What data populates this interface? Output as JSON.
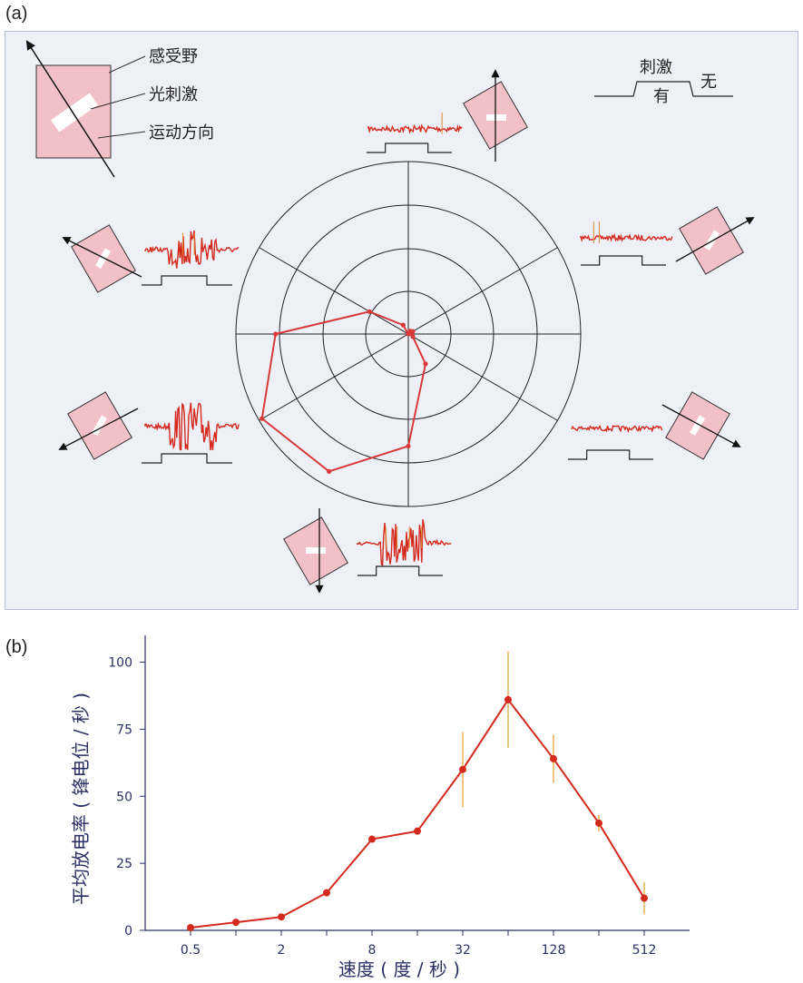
{
  "panel_a": {
    "label": "(a)",
    "legend": {
      "receptive_field": "感受野",
      "light_stimulus": "光刺激",
      "motion_direction": "运动方向"
    },
    "stimulus_key": {
      "title": "刺激",
      "on": "有",
      "off": "无"
    },
    "colors": {
      "trace": "#d42a1e",
      "field": "#f2c1c8",
      "polygon": "#d8393a"
    }
  },
  "chart_data": [
    {
      "type": "polar",
      "panel": "a",
      "title": "",
      "directions_deg": [
        90,
        30,
        -30,
        -90,
        -150,
        150
      ],
      "rings": 4,
      "grid": true,
      "polygon_points": [
        {
          "angle_deg": 90,
          "r": 0.0
        },
        {
          "angle_deg": 60,
          "r": 0.02
        },
        {
          "angle_deg": 30,
          "r": 0.03
        },
        {
          "angle_deg": 0,
          "r": 0.02
        },
        {
          "angle_deg": -30,
          "r": 0.03
        },
        {
          "angle_deg": -60,
          "r": 0.2
        },
        {
          "angle_deg": -90,
          "r": 0.65
        },
        {
          "angle_deg": -120,
          "r": 0.92
        },
        {
          "angle_deg": -150,
          "r": 0.98
        },
        {
          "angle_deg": 180,
          "r": 0.77
        },
        {
          "angle_deg": 150,
          "r": 0.26
        },
        {
          "angle_deg": 120,
          "r": 0.06
        }
      ]
    },
    {
      "type": "line",
      "panel": "b",
      "label": "(b)",
      "title": "",
      "xlabel": "速度 ( 度 / 秒 )",
      "ylabel": "平均放电率 ( 锋电位 / 秒 )",
      "xscale": "log2",
      "xticks": [
        "0.5",
        "2",
        "8",
        "32",
        "128",
        "512"
      ],
      "yticks": [
        "0",
        "25",
        "50",
        "75",
        "100"
      ],
      "ylim": [
        0,
        110
      ],
      "series": [
        {
          "x": [
            0.5,
            1,
            2,
            4,
            8,
            16,
            32,
            64,
            128,
            256,
            512
          ],
          "y": [
            1,
            3,
            5,
            14,
            34,
            37,
            60,
            86,
            64,
            40,
            12
          ],
          "err": [
            0,
            0,
            0,
            0,
            0,
            0,
            14,
            18,
            9,
            3,
            6
          ]
        }
      ],
      "colors": {
        "line": "#d42a1e",
        "errorbar": "#e0a030",
        "axis": "#2a3066"
      }
    }
  ]
}
